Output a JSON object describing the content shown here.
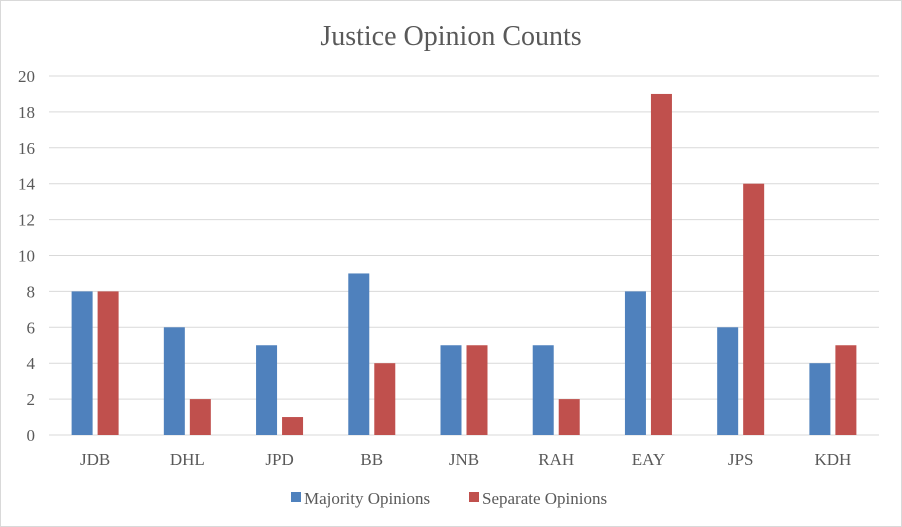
{
  "chart_data": {
    "type": "bar",
    "title": "Justice Opinion Counts",
    "categories": [
      "JDB",
      "DHL",
      "JPD",
      "BB",
      "JNB",
      "RAH",
      "EAY",
      "JPS",
      "KDH"
    ],
    "series": [
      {
        "name": "Majority Opinions",
        "color": "#4f81bd",
        "values": [
          8,
          6,
          5,
          9,
          5,
          5,
          8,
          6,
          4
        ]
      },
      {
        "name": "Separate Opinions",
        "color": "#c0504d",
        "values": [
          8,
          2,
          1,
          4,
          5,
          2,
          19,
          14,
          5
        ]
      }
    ],
    "ylim": [
      0,
      20
    ],
    "yticks": [
      0,
      2,
      4,
      6,
      8,
      10,
      12,
      14,
      16,
      18,
      20
    ],
    "grid": true,
    "legend_position": "bottom"
  }
}
